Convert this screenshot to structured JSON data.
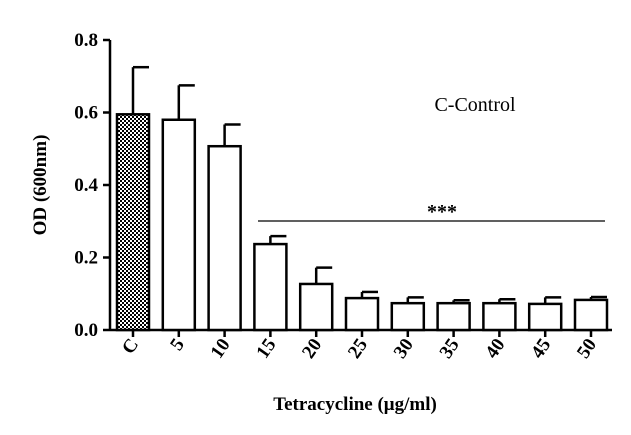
{
  "chart_data": {
    "type": "bar",
    "x_label": "Tetracycline (μg/ml)",
    "y_label": "OD (600nm)",
    "annotations": [
      "C-Control",
      "***"
    ],
    "categories": [
      "C",
      "5",
      "10",
      "15",
      "20",
      "25",
      "30",
      "35",
      "40",
      "45",
      "50"
    ],
    "values": [
      0.595,
      0.58,
      0.507,
      0.237,
      0.127,
      0.088,
      0.074,
      0.074,
      0.074,
      0.072,
      0.083
    ],
    "errors": [
      0.13,
      0.095,
      0.06,
      0.022,
      0.045,
      0.017,
      0.016,
      0.008,
      0.011,
      0.018,
      0.008
    ],
    "fills": [
      "checkered",
      "#ffffff",
      "#ffffff",
      "#ffffff",
      "#ffffff",
      "#ffffff",
      "#ffffff",
      "#ffffff",
      "#ffffff",
      "#ffffff",
      "#ffffff"
    ],
    "ylim": [
      0,
      0.8
    ],
    "yticks": [
      {
        "value": 0,
        "label": "0.0"
      },
      0.2,
      0.4,
      0.6,
      0.8
    ]
  }
}
